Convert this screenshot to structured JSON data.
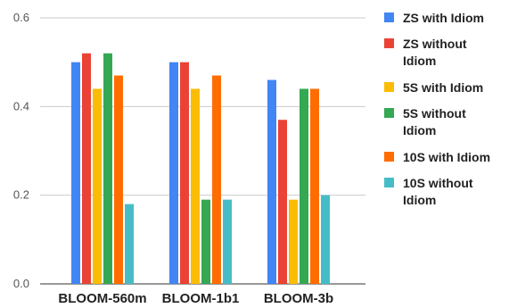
{
  "chart_data": {
    "type": "bar",
    "title": "",
    "xlabel": "",
    "ylabel": "",
    "categories": [
      "BLOOM-560m",
      "BLOOM-1b1",
      "BLOOM-3b"
    ],
    "ylim": [
      0,
      0.6
    ],
    "yticks": [
      "0.0",
      "0.2",
      "0.4",
      "0.6"
    ],
    "yticks_values": [
      0,
      0.2,
      0.4,
      0.6
    ],
    "grid": true,
    "legend_position": "right",
    "series": [
      {
        "name": "ZS with Idiom",
        "name_lines": [
          "ZS with Idiom"
        ],
        "color": "#4285f4",
        "values": [
          0.5,
          0.5,
          0.46
        ]
      },
      {
        "name": "ZS without Idiom",
        "name_lines": [
          "ZS without",
          "Idiom"
        ],
        "color": "#ea4335",
        "values": [
          0.52,
          0.5,
          0.37
        ]
      },
      {
        "name": "5S with Idiom",
        "name_lines": [
          "5S with Idiom"
        ],
        "color": "#fbbc04",
        "values": [
          0.44,
          0.44,
          0.19
        ]
      },
      {
        "name": "5S without Idiom",
        "name_lines": [
          "5S without",
          "Idiom"
        ],
        "color": "#34a853",
        "values": [
          0.52,
          0.19,
          0.44
        ]
      },
      {
        "name": "10S with Idiom",
        "name_lines": [
          "10S with Idiom"
        ],
        "color": "#ff6d01",
        "values": [
          0.47,
          0.47,
          0.44
        ]
      },
      {
        "name": "10S without Idiom",
        "name_lines": [
          "10S without",
          "Idiom"
        ],
        "color": "#46bdc6",
        "values": [
          0.18,
          0.19,
          0.2
        ]
      }
    ]
  }
}
